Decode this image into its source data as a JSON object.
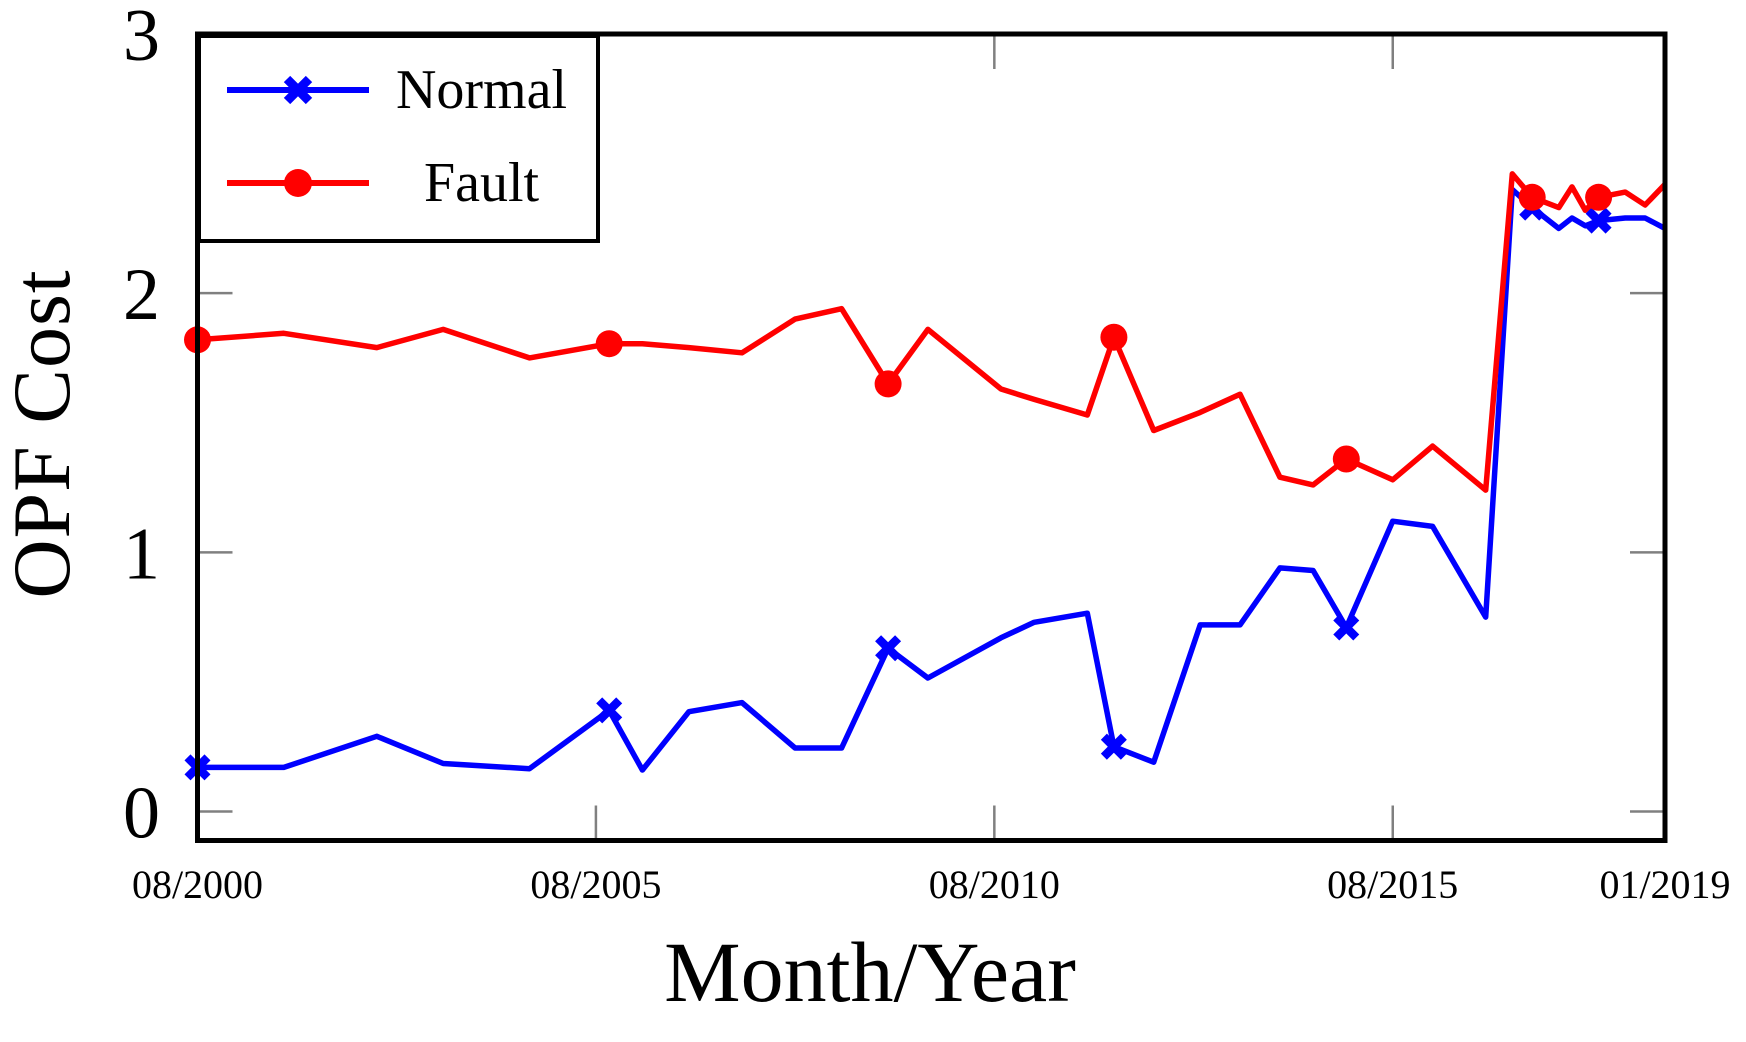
{
  "page": {
    "background": "#ffffff"
  },
  "chart_data": {
    "type": "line",
    "title": "",
    "xlabel": "Month/Year",
    "ylabel": "OPF Cost",
    "grid": false,
    "legend_position": "top-left",
    "axis_color": "#000000",
    "tick_color": "#808080",
    "x_axis": {
      "unit": "months since 08/2000",
      "min": 0,
      "max": 221,
      "ticks": [
        {
          "v": 0,
          "label": "08/2000"
        },
        {
          "v": 60,
          "label": "08/2005"
        },
        {
          "v": 120,
          "label": "08/2010"
        },
        {
          "v": 180,
          "label": "08/2015"
        },
        {
          "v": 221,
          "label": "01/2019"
        }
      ]
    },
    "y_axis": {
      "min": -0.112,
      "max": 3.0,
      "ticks": [
        {
          "v": 0,
          "label": "0"
        },
        {
          "v": 1,
          "label": "1"
        },
        {
          "v": 2,
          "label": "2"
        },
        {
          "v": 3,
          "label": "3"
        }
      ]
    },
    "x": [
      0,
      13,
      27,
      37,
      50,
      62,
      67,
      74,
      82,
      90,
      97,
      104,
      110,
      121,
      126,
      134,
      138,
      144,
      151,
      157,
      163,
      168,
      173,
      180,
      186,
      194,
      198,
      201,
      205,
      207,
      209,
      211,
      215,
      218,
      221
    ],
    "series": [
      {
        "name": "Normal",
        "color": "#0000FF",
        "marker": "x",
        "values": [
          0.17,
          0.17,
          0.29,
          0.185,
          0.165,
          0.39,
          0.16,
          0.385,
          0.42,
          0.245,
          0.245,
          0.63,
          0.515,
          0.67,
          0.73,
          0.765,
          0.25,
          0.19,
          0.72,
          0.72,
          0.94,
          0.93,
          0.71,
          1.12,
          1.1,
          0.75,
          2.4,
          2.33,
          2.25,
          2.29,
          2.26,
          2.28,
          2.29,
          2.29,
          2.25
        ]
      },
      {
        "name": "Fault",
        "color": "#FF0000",
        "marker": "circle",
        "values": [
          1.82,
          1.845,
          1.79,
          1.86,
          1.75,
          1.805,
          1.805,
          1.79,
          1.77,
          1.9,
          1.94,
          1.65,
          1.86,
          1.63,
          1.59,
          1.53,
          1.83,
          1.47,
          1.54,
          1.61,
          1.29,
          1.26,
          1.36,
          1.28,
          1.41,
          1.24,
          2.46,
          2.37,
          2.33,
          2.41,
          2.32,
          2.37,
          2.39,
          2.34,
          2.42
        ]
      }
    ],
    "marker_indices": [
      0,
      5,
      11,
      16,
      22,
      27,
      31
    ]
  }
}
